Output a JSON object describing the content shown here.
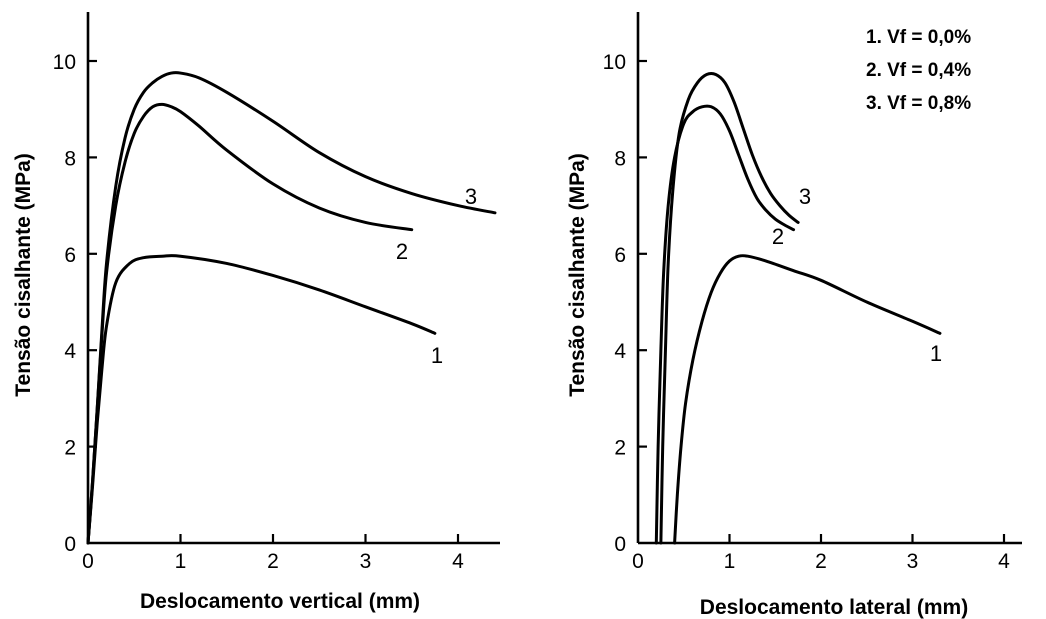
{
  "chart_data": [
    {
      "type": "line",
      "xlabel": "Deslocamento vertical (mm)",
      "ylabel": "Tensão cisalhante (MPa)",
      "xlim": [
        0,
        4.4
      ],
      "ylim": [
        0,
        11
      ],
      "xticks": [
        "0",
        "1",
        "2",
        "3",
        "4"
      ],
      "yticks": [
        "0",
        "2",
        "4",
        "6",
        "8",
        "10"
      ],
      "grid": false,
      "series": [
        {
          "name": "1",
          "x": [
            0,
            0.05,
            0.1,
            0.15,
            0.2,
            0.3,
            0.45,
            0.6,
            0.8,
            1.0,
            1.5,
            2.0,
            2.5,
            3.0,
            3.5,
            3.75
          ],
          "y": [
            0,
            1.2,
            2.5,
            3.6,
            4.5,
            5.4,
            5.8,
            5.92,
            5.95,
            5.95,
            5.8,
            5.55,
            5.25,
            4.9,
            4.55,
            4.35
          ]
        },
        {
          "name": "2",
          "x": [
            0,
            0.05,
            0.1,
            0.15,
            0.2,
            0.3,
            0.4,
            0.5,
            0.6,
            0.7,
            0.8,
            0.9,
            1.0,
            1.2,
            1.5,
            2.0,
            2.5,
            3.0,
            3.5
          ],
          "y": [
            0,
            1.3,
            2.8,
            4.3,
            5.6,
            7.0,
            7.9,
            8.5,
            8.85,
            9.05,
            9.1,
            9.05,
            8.95,
            8.65,
            8.15,
            7.45,
            6.95,
            6.65,
            6.5
          ]
        },
        {
          "name": "3",
          "x": [
            0,
            0.05,
            0.1,
            0.15,
            0.2,
            0.3,
            0.4,
            0.5,
            0.6,
            0.7,
            0.8,
            0.9,
            1.0,
            1.2,
            1.5,
            2.0,
            2.5,
            3.0,
            3.5,
            4.0,
            4.4
          ],
          "y": [
            0,
            1.3,
            2.8,
            4.4,
            5.8,
            7.4,
            8.4,
            9.0,
            9.35,
            9.55,
            9.68,
            9.75,
            9.75,
            9.65,
            9.35,
            8.75,
            8.1,
            7.6,
            7.25,
            7.0,
            6.85
          ]
        }
      ],
      "curve_labels": [
        "1",
        "2",
        "3"
      ]
    },
    {
      "type": "line",
      "xlabel": "Deslocamento lateral (mm)",
      "ylabel": "Tensão cisalhante (MPa)",
      "xlim": [
        0,
        4.4
      ],
      "ylim": [
        0,
        11
      ],
      "xticks": [
        "0",
        "1",
        "2",
        "3",
        "4"
      ],
      "yticks": [
        "0",
        "2",
        "4",
        "6",
        "8",
        "10"
      ],
      "grid": false,
      "legend": [
        "1. Vf = 0,0%",
        "2. Vf = 0,4%",
        "3. Vf = 0,8%"
      ],
      "legend_position": "top-right",
      "series": [
        {
          "name": "1",
          "x": [
            0.4,
            0.43,
            0.47,
            0.52,
            0.6,
            0.7,
            0.8,
            0.9,
            1.0,
            1.1,
            1.2,
            1.4,
            1.7,
            2.0,
            2.5,
            3.0,
            3.3
          ],
          "y": [
            0,
            1.0,
            2.0,
            2.9,
            3.8,
            4.6,
            5.2,
            5.6,
            5.85,
            5.95,
            5.95,
            5.85,
            5.65,
            5.45,
            5.0,
            4.6,
            4.35
          ]
        },
        {
          "name": "2",
          "x": [
            0.2,
            0.22,
            0.25,
            0.28,
            0.33,
            0.4,
            0.5,
            0.6,
            0.7,
            0.8,
            0.9,
            1.0,
            1.1,
            1.2,
            1.3,
            1.4,
            1.5,
            1.6,
            1.7
          ],
          "y": [
            0,
            2.0,
            4.0,
            5.6,
            7.0,
            8.0,
            8.7,
            8.95,
            9.05,
            9.05,
            8.9,
            8.55,
            8.05,
            7.55,
            7.15,
            6.9,
            6.72,
            6.6,
            6.5
          ]
        },
        {
          "name": "3",
          "x": [
            0.25,
            0.27,
            0.3,
            0.33,
            0.38,
            0.45,
            0.55,
            0.65,
            0.75,
            0.85,
            0.95,
            1.05,
            1.15,
            1.25,
            1.35,
            1.45,
            1.55,
            1.65,
            1.75
          ],
          "y": [
            0,
            2.0,
            4.0,
            5.8,
            7.3,
            8.5,
            9.2,
            9.55,
            9.72,
            9.72,
            9.55,
            9.15,
            8.6,
            8.05,
            7.6,
            7.25,
            7.0,
            6.8,
            6.65
          ]
        }
      ],
      "curve_labels": [
        "1",
        "2",
        "3"
      ]
    }
  ]
}
